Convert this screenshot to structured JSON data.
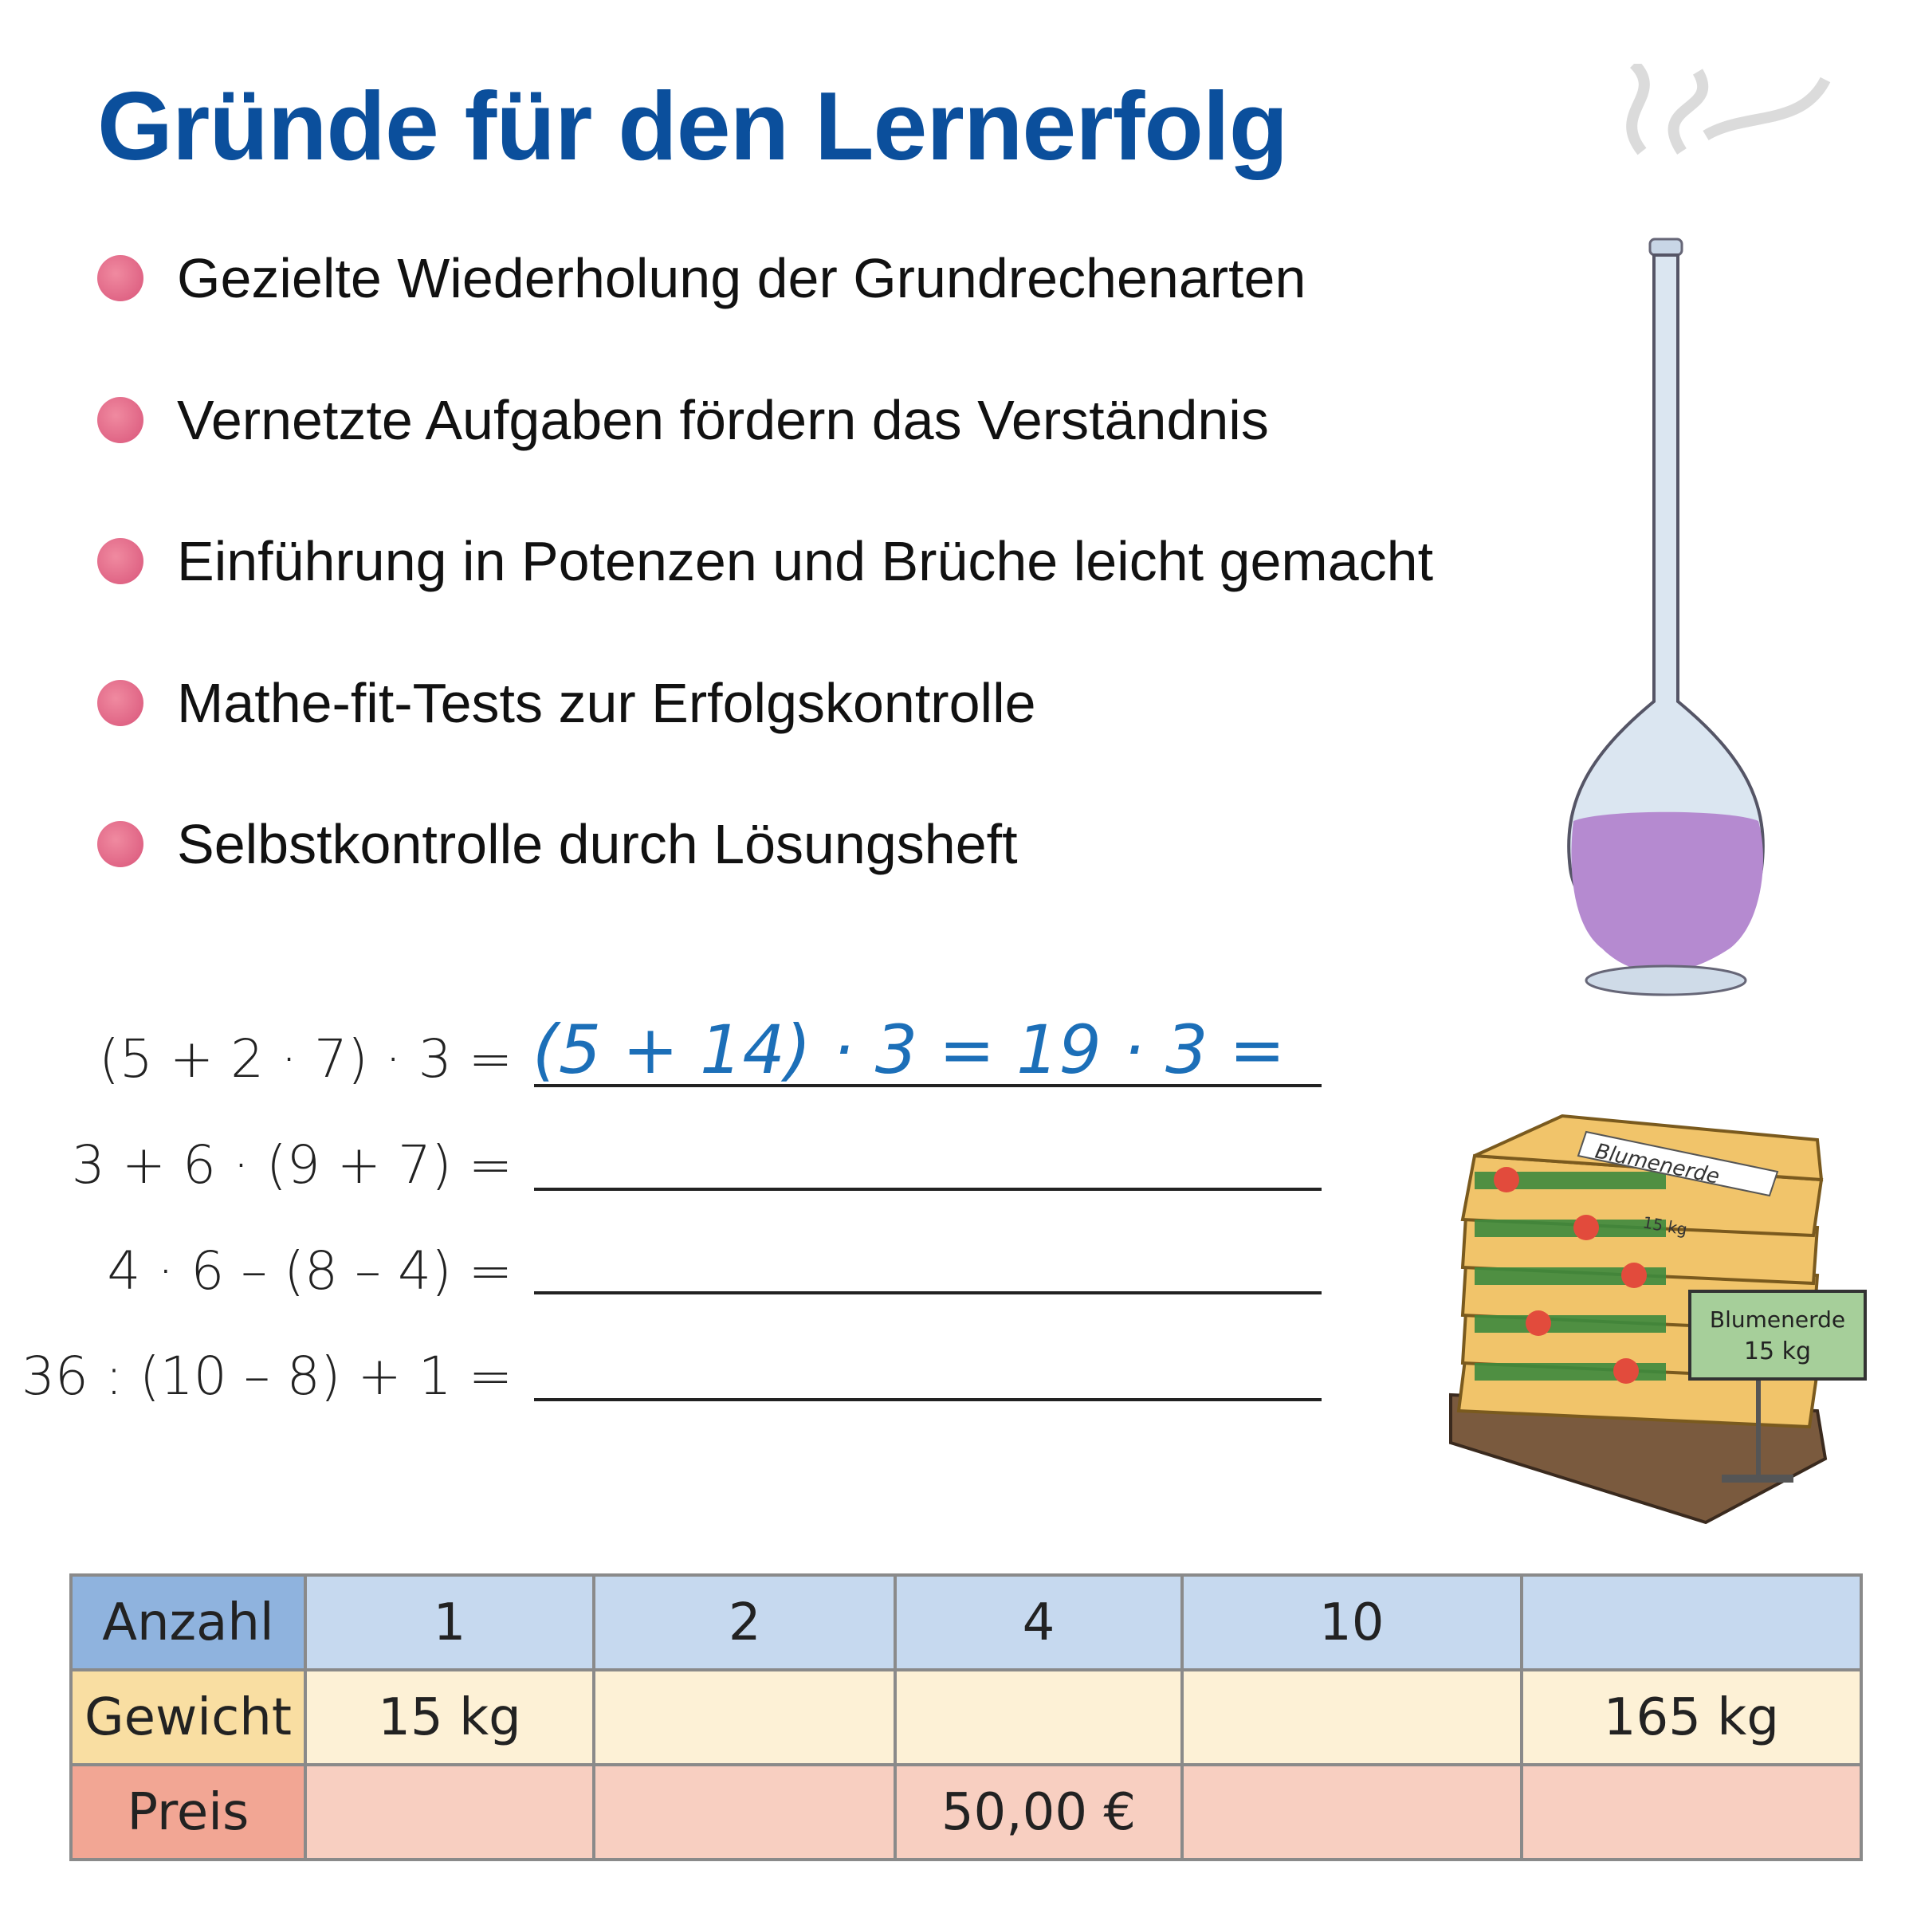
{
  "title": "Gründe für den Lernerfolg",
  "bullets": [
    "Gezielte Wiederholung der Grundrechenarten",
    "Vernetzte Aufgaben fördern das Verständnis",
    "Einführung in Potenzen und Brüche leicht gemacht",
    "Mathe-fit-Tests zur Erfolgskontrolle",
    "Selbstkontrolle durch Lösungsheft"
  ],
  "exercises": [
    {
      "expression": "(5 + 2 · 7) · 3 =",
      "answer": "(5 + 14) · 3 = 19 · 3 ="
    },
    {
      "expression": "3 + 6 · (9 + 7) =",
      "answer": ""
    },
    {
      "expression": "4 · 6 – (8 – 4) =",
      "answer": ""
    },
    {
      "expression": "36 : (10 – 8) + 1 =",
      "answer": ""
    }
  ],
  "bag_sign": {
    "label": "Blumenerde",
    "weight": "15 kg",
    "bag_label": "Blumenerde",
    "bag_weight": "15 kg"
  },
  "table": {
    "rows": [
      {
        "header": "Anzahl",
        "cells": [
          "1",
          "2",
          "4",
          "10",
          ""
        ]
      },
      {
        "header": "Gewicht",
        "cells": [
          "15 kg",
          "",
          "",
          "",
          "165 kg"
        ]
      },
      {
        "header": "Preis",
        "cells": [
          "",
          "",
          "50,00 €",
          "",
          ""
        ]
      }
    ]
  },
  "colors": {
    "title": "#0b4f9c",
    "bullet": "#e06c8a",
    "answer": "#1c6fb8",
    "anzahl": "#c6d9ef",
    "gewicht": "#fdf1d6",
    "preis": "#f8cfc1"
  }
}
